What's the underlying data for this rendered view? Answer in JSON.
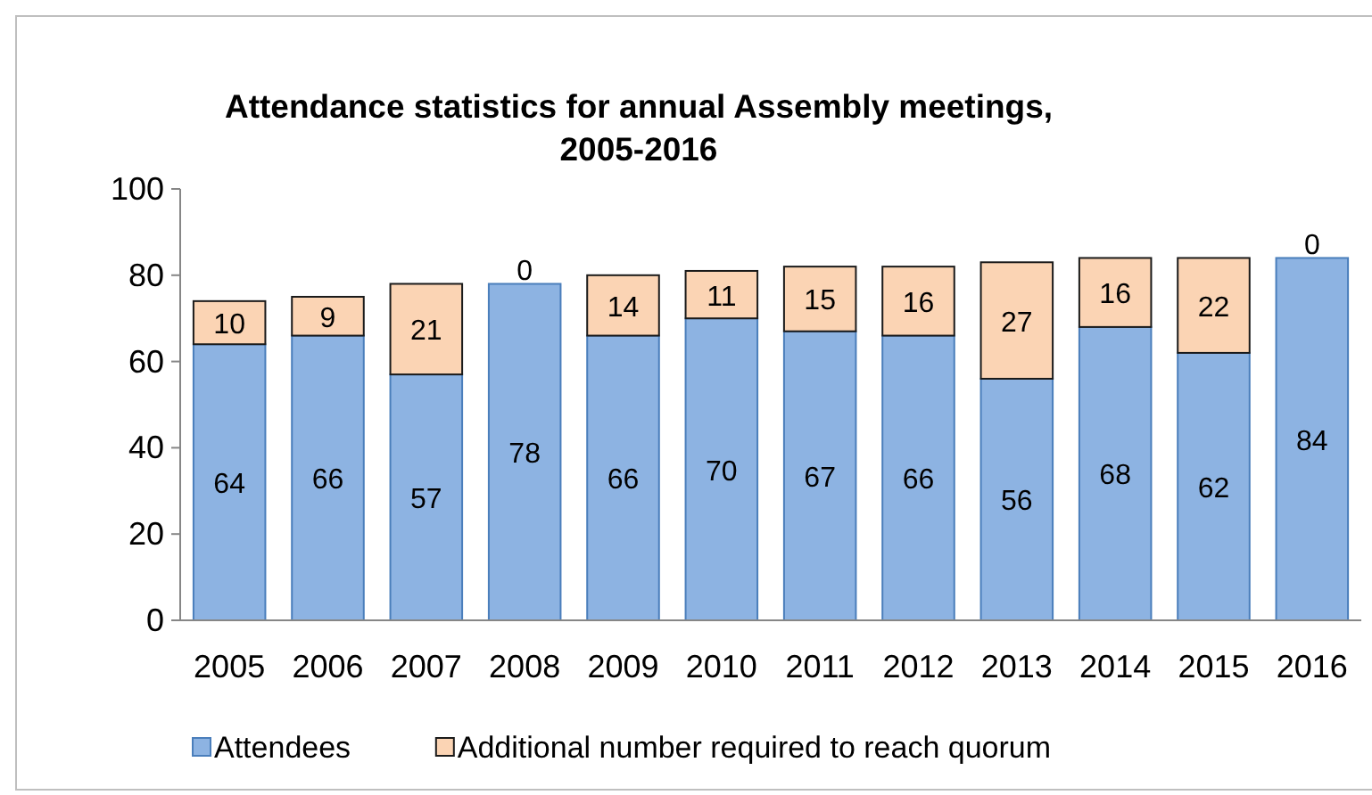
{
  "chart_data": {
    "type": "bar",
    "title": "Attendance statistics for annual Assembly meetings, 2005-2016",
    "categories": [
      "2005",
      "2006",
      "2007",
      "2008",
      "2009",
      "2010",
      "2011",
      "2012",
      "2013",
      "2014",
      "2015",
      "2016"
    ],
    "series": [
      {
        "name": "Attendees",
        "color": "#8db3e2",
        "values": [
          64,
          66,
          57,
          78,
          66,
          70,
          67,
          66,
          56,
          68,
          62,
          84
        ]
      },
      {
        "name": "Additional number required to reach quorum",
        "color": "#fbd4b4",
        "values": [
          10,
          9,
          21,
          0,
          14,
          11,
          15,
          16,
          27,
          16,
          22,
          0
        ]
      }
    ],
    "stacked": true,
    "data_labels": true,
    "ylim": [
      0,
      100
    ],
    "yticks": [
      0,
      20,
      40,
      60,
      80,
      100
    ],
    "grid": false,
    "legend": "bottom"
  }
}
